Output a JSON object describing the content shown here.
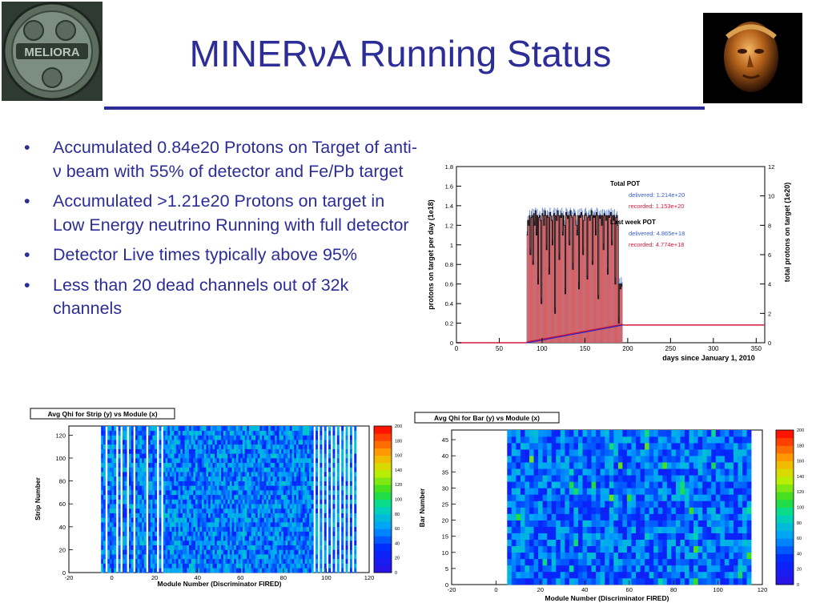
{
  "slide": {
    "title": "MINERνA Running Status",
    "logo_left_text": "MELIORA",
    "bullets": [
      "Accumulated 0.84e20 Protons on Target of anti-ν beam with 55% of detector and Fe/Pb target",
      "Accumulated >1.21e20 Protons on target in Low Energy neutrino Running with full detector",
      "Detector Live times typically above 95%",
      "Less than 20 dead channels out of 32k channels"
    ],
    "bullet_lines": [
      [
        "Accumulated 0.84e20 Protons on",
        "Target of anti-ν beam with 55% of",
        "detector and Fe/Pb target"
      ],
      [
        "Accumulated >1.21e20 Protons on",
        "target in Low Energy neutrino Running",
        "with full detector"
      ],
      [
        "Detector Live times typically above 95%"
      ],
      [
        "Less than 20 dead channels out of 32k",
        "channels"
      ]
    ],
    "bullet_glyph": "•"
  },
  "chart_data": [
    {
      "type": "bar",
      "xlabel": "days since January 1, 2010",
      "ylabel": "protons on target per day (1e18)",
      "ylabel_right": "total protons on target (1e20)",
      "xlim": [
        0,
        360
      ],
      "ylim": [
        0,
        1.8
      ],
      "ylim_right": [
        0,
        12
      ],
      "x_ticks": [
        "0",
        "50",
        "100",
        "150",
        "200",
        "250",
        "300",
        "350"
      ],
      "y_ticks": [
        "0",
        "0.2",
        "0.4",
        "0.6",
        "0.8",
        "1",
        "1.2",
        "1.4",
        "1.6",
        "1.8"
      ],
      "y_right_ticks": [
        "0",
        "2",
        "4",
        "6",
        "8",
        "10",
        "12"
      ],
      "legend": {
        "total_heading": "Total POT",
        "total_delivered": "delivered:  1.214e+20",
        "total_recorded": "recorded:  1.153e+20",
        "week_heading": "Last week POT",
        "week_delivered": "delivered:  4.865e+18",
        "week_recorded": "recorded:  4.774e+18"
      },
      "colors": {
        "recorded": "#d95f5f",
        "delivered": "#6f8fd6",
        "cumulative_recorded": "#d01a3c",
        "cumulative_delivered": "#2222cc"
      },
      "daily_start_day": 82,
      "daily_end_day": 194,
      "daily_values": [
        1.1,
        1.25,
        1.2,
        1.3,
        0.9,
        1.28,
        1.3,
        0.8,
        1.32,
        1.2,
        1.35,
        1.1,
        1.3,
        0.6,
        1.28,
        1.3,
        1.25,
        0.4,
        1.32,
        1.3,
        1.2,
        1.35,
        1.3,
        0.95,
        1.3,
        1.28,
        0.7,
        1.33,
        1.3,
        1.25,
        1.0,
        1.3,
        1.32,
        0.3,
        1.3,
        1.25,
        1.35,
        1.3,
        0.85,
        1.3,
        1.28,
        1.32,
        1.1,
        1.3,
        1.2,
        0.5,
        1.33,
        1.3,
        1.27,
        1.3,
        1.0,
        1.35,
        1.3,
        1.28,
        0.75,
        1.3,
        1.32,
        1.3,
        1.2,
        1.1,
        1.3,
        0.55,
        1.3,
        1.28,
        1.33,
        1.3,
        0.9,
        1.25,
        1.3,
        1.32,
        1.3,
        0.65,
        1.28,
        1.3,
        1.25,
        1.3,
        1.35,
        0.8,
        1.3,
        1.28,
        1.3,
        1.1,
        1.33,
        1.3,
        0.45,
        1.3,
        1.27,
        1.3,
        1.2,
        1.3,
        0.95,
        1.32,
        1.3,
        1.25,
        1.3,
        0.7,
        1.3,
        1.28,
        1.3,
        1.33,
        1.0,
        1.3,
        1.25,
        1.3,
        0.6,
        1.28,
        1.3,
        1.2,
        0.2,
        0.6,
        0.55,
        0.6,
        0.58
      ],
      "cumulative_total_end": 1.21
    },
    {
      "type": "heatmap",
      "title": "Avg Qhi for Strip (y) vs Module (x)",
      "xlabel": "Module Number (Discriminator FIRED)",
      "ylabel": "Strip Number",
      "x_ticks": [
        "-20",
        "0",
        "20",
        "40",
        "60",
        "80",
        "100",
        "120"
      ],
      "y_ticks": [
        "0",
        "20",
        "40",
        "60",
        "80",
        "100",
        "120"
      ],
      "xlim": [
        -20,
        120
      ],
      "ylim": [
        0,
        128
      ],
      "data_x_range": [
        -5,
        115
      ],
      "z_ticks": [
        "0",
        "20",
        "40",
        "60",
        "80",
        "100",
        "120",
        "140",
        "160",
        "180",
        "200"
      ],
      "zlim": [
        0,
        200
      ],
      "empty_columns": [
        -3,
        2,
        4,
        7,
        10,
        16,
        21,
        23
      ]
    },
    {
      "type": "heatmap",
      "title": "Avg Qhi for Bar (y) vs Module (x)",
      "xlabel": "Module Number (Discriminator FIRED)",
      "ylabel": "Bar Number",
      "x_ticks": [
        "-20",
        "0",
        "20",
        "40",
        "60",
        "80",
        "100",
        "120"
      ],
      "y_ticks": [
        "0",
        "5",
        "10",
        "15",
        "20",
        "25",
        "30",
        "35",
        "40",
        "45"
      ],
      "xlim": [
        -20,
        120
      ],
      "ylim": [
        0,
        48
      ],
      "data_x_range": [
        5,
        115
      ],
      "z_ticks": [
        "0",
        "20",
        "40",
        "60",
        "80",
        "100",
        "120",
        "140",
        "160",
        "180",
        "200"
      ],
      "zlim": [
        0,
        200
      ]
    }
  ]
}
